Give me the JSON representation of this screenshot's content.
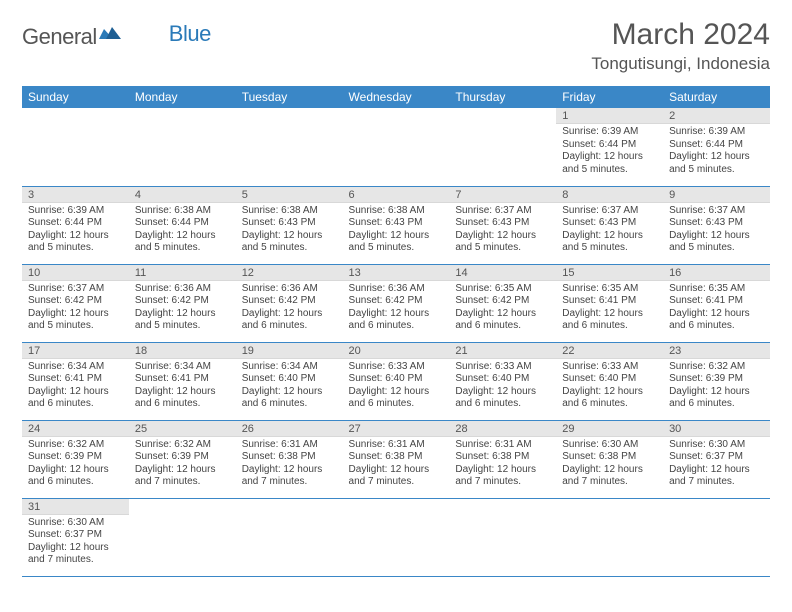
{
  "logo": {
    "text1": "General",
    "text2": "Blue"
  },
  "title": "March 2024",
  "location": "Tongutisungi, Indonesia",
  "colors": {
    "header_bg": "#3a87c7",
    "header_text": "#ffffff",
    "daynum_bg": "#e6e6e6",
    "divider": "#3a87c7",
    "body_text": "#444444",
    "title_text": "#555555"
  },
  "dayHeaders": [
    "Sunday",
    "Monday",
    "Tuesday",
    "Wednesday",
    "Thursday",
    "Friday",
    "Saturday"
  ],
  "weeks": [
    [
      null,
      null,
      null,
      null,
      null,
      {
        "n": "1",
        "sr": "Sunrise: 6:39 AM",
        "ss": "Sunset: 6:44 PM",
        "dl": "Daylight: 12 hours and 5 minutes."
      },
      {
        "n": "2",
        "sr": "Sunrise: 6:39 AM",
        "ss": "Sunset: 6:44 PM",
        "dl": "Daylight: 12 hours and 5 minutes."
      }
    ],
    [
      {
        "n": "3",
        "sr": "Sunrise: 6:39 AM",
        "ss": "Sunset: 6:44 PM",
        "dl": "Daylight: 12 hours and 5 minutes."
      },
      {
        "n": "4",
        "sr": "Sunrise: 6:38 AM",
        "ss": "Sunset: 6:44 PM",
        "dl": "Daylight: 12 hours and 5 minutes."
      },
      {
        "n": "5",
        "sr": "Sunrise: 6:38 AM",
        "ss": "Sunset: 6:43 PM",
        "dl": "Daylight: 12 hours and 5 minutes."
      },
      {
        "n": "6",
        "sr": "Sunrise: 6:38 AM",
        "ss": "Sunset: 6:43 PM",
        "dl": "Daylight: 12 hours and 5 minutes."
      },
      {
        "n": "7",
        "sr": "Sunrise: 6:37 AM",
        "ss": "Sunset: 6:43 PM",
        "dl": "Daylight: 12 hours and 5 minutes."
      },
      {
        "n": "8",
        "sr": "Sunrise: 6:37 AM",
        "ss": "Sunset: 6:43 PM",
        "dl": "Daylight: 12 hours and 5 minutes."
      },
      {
        "n": "9",
        "sr": "Sunrise: 6:37 AM",
        "ss": "Sunset: 6:43 PM",
        "dl": "Daylight: 12 hours and 5 minutes."
      }
    ],
    [
      {
        "n": "10",
        "sr": "Sunrise: 6:37 AM",
        "ss": "Sunset: 6:42 PM",
        "dl": "Daylight: 12 hours and 5 minutes."
      },
      {
        "n": "11",
        "sr": "Sunrise: 6:36 AM",
        "ss": "Sunset: 6:42 PM",
        "dl": "Daylight: 12 hours and 5 minutes."
      },
      {
        "n": "12",
        "sr": "Sunrise: 6:36 AM",
        "ss": "Sunset: 6:42 PM",
        "dl": "Daylight: 12 hours and 6 minutes."
      },
      {
        "n": "13",
        "sr": "Sunrise: 6:36 AM",
        "ss": "Sunset: 6:42 PM",
        "dl": "Daylight: 12 hours and 6 minutes."
      },
      {
        "n": "14",
        "sr": "Sunrise: 6:35 AM",
        "ss": "Sunset: 6:42 PM",
        "dl": "Daylight: 12 hours and 6 minutes."
      },
      {
        "n": "15",
        "sr": "Sunrise: 6:35 AM",
        "ss": "Sunset: 6:41 PM",
        "dl": "Daylight: 12 hours and 6 minutes."
      },
      {
        "n": "16",
        "sr": "Sunrise: 6:35 AM",
        "ss": "Sunset: 6:41 PM",
        "dl": "Daylight: 12 hours and 6 minutes."
      }
    ],
    [
      {
        "n": "17",
        "sr": "Sunrise: 6:34 AM",
        "ss": "Sunset: 6:41 PM",
        "dl": "Daylight: 12 hours and 6 minutes."
      },
      {
        "n": "18",
        "sr": "Sunrise: 6:34 AM",
        "ss": "Sunset: 6:41 PM",
        "dl": "Daylight: 12 hours and 6 minutes."
      },
      {
        "n": "19",
        "sr": "Sunrise: 6:34 AM",
        "ss": "Sunset: 6:40 PM",
        "dl": "Daylight: 12 hours and 6 minutes."
      },
      {
        "n": "20",
        "sr": "Sunrise: 6:33 AM",
        "ss": "Sunset: 6:40 PM",
        "dl": "Daylight: 12 hours and 6 minutes."
      },
      {
        "n": "21",
        "sr": "Sunrise: 6:33 AM",
        "ss": "Sunset: 6:40 PM",
        "dl": "Daylight: 12 hours and 6 minutes."
      },
      {
        "n": "22",
        "sr": "Sunrise: 6:33 AM",
        "ss": "Sunset: 6:40 PM",
        "dl": "Daylight: 12 hours and 6 minutes."
      },
      {
        "n": "23",
        "sr": "Sunrise: 6:32 AM",
        "ss": "Sunset: 6:39 PM",
        "dl": "Daylight: 12 hours and 6 minutes."
      }
    ],
    [
      {
        "n": "24",
        "sr": "Sunrise: 6:32 AM",
        "ss": "Sunset: 6:39 PM",
        "dl": "Daylight: 12 hours and 6 minutes."
      },
      {
        "n": "25",
        "sr": "Sunrise: 6:32 AM",
        "ss": "Sunset: 6:39 PM",
        "dl": "Daylight: 12 hours and 7 minutes."
      },
      {
        "n": "26",
        "sr": "Sunrise: 6:31 AM",
        "ss": "Sunset: 6:38 PM",
        "dl": "Daylight: 12 hours and 7 minutes."
      },
      {
        "n": "27",
        "sr": "Sunrise: 6:31 AM",
        "ss": "Sunset: 6:38 PM",
        "dl": "Daylight: 12 hours and 7 minutes."
      },
      {
        "n": "28",
        "sr": "Sunrise: 6:31 AM",
        "ss": "Sunset: 6:38 PM",
        "dl": "Daylight: 12 hours and 7 minutes."
      },
      {
        "n": "29",
        "sr": "Sunrise: 6:30 AM",
        "ss": "Sunset: 6:38 PM",
        "dl": "Daylight: 12 hours and 7 minutes."
      },
      {
        "n": "30",
        "sr": "Sunrise: 6:30 AM",
        "ss": "Sunset: 6:37 PM",
        "dl": "Daylight: 12 hours and 7 minutes."
      }
    ],
    [
      {
        "n": "31",
        "sr": "Sunrise: 6:30 AM",
        "ss": "Sunset: 6:37 PM",
        "dl": "Daylight: 12 hours and 7 minutes."
      },
      null,
      null,
      null,
      null,
      null,
      null
    ]
  ]
}
